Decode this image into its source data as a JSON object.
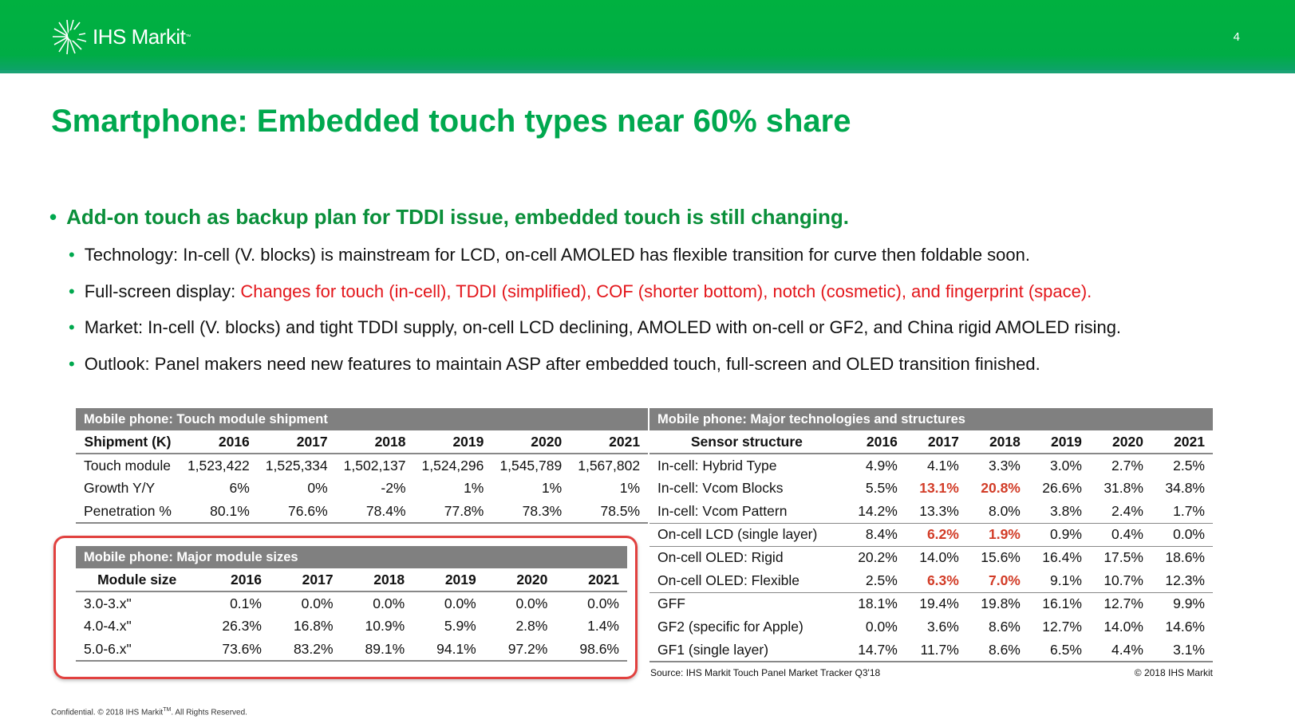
{
  "header": {
    "brand": "IHS Markit",
    "page_number": "4"
  },
  "title": "Smartphone: Embedded touch types near 60% share",
  "main_bullet": "Add-on touch as backup plan for TDDI issue, embedded touch is still changing.",
  "sub_bullets": [
    {
      "lead": "Technology: In-cell (V. blocks) is mainstream for LCD, on-cell AMOLED has flexible transition for curve then foldable soon.",
      "highlight": ""
    },
    {
      "lead": "Full-screen display: ",
      "highlight": "Changes for touch (in-cell), TDDI (simplified), COF (shorter bottom), notch (cosmetic), and fingerprint (space)."
    },
    {
      "lead": "Market: In-cell (V. blocks) and tight TDDI supply, on-cell LCD declining, AMOLED with on-cell or GF2, and China rigid AMOLED rising.",
      "highlight": ""
    },
    {
      "lead": "Outlook: Panel makers need new features to maintain ASP after embedded touch, full-screen and OLED transition finished.",
      "highlight": ""
    }
  ],
  "tables": {
    "shipment": {
      "caption": "Mobile phone: Touch module shipment",
      "headers": [
        "Shipment (K)",
        "2016",
        "2017",
        "2018",
        "2019",
        "2020",
        "2021"
      ],
      "rows": [
        [
          "Touch module",
          "1,523,422",
          "1,525,334",
          "1,502,137",
          "1,524,296",
          "1,545,789",
          "1,567,802"
        ],
        [
          "Growth Y/Y",
          "6%",
          "0%",
          "-2%",
          "1%",
          "1%",
          "1%"
        ],
        [
          "Penetration %",
          "80.1%",
          "76.6%",
          "78.4%",
          "77.8%",
          "78.3%",
          "78.5%"
        ]
      ]
    },
    "sizes": {
      "caption": "Mobile phone: Major module sizes",
      "headers": [
        "Module size",
        "2016",
        "2017",
        "2018",
        "2019",
        "2020",
        "2021"
      ],
      "rows": [
        [
          "3.0-3.x\"",
          "0.1%",
          "0.0%",
          "0.0%",
          "0.0%",
          "0.0%",
          "0.0%"
        ],
        [
          "4.0-4.x\"",
          "26.3%",
          "16.8%",
          "10.9%",
          "5.9%",
          "2.8%",
          "1.4%"
        ],
        [
          "5.0-6.x\"",
          "73.6%",
          "83.2%",
          "89.1%",
          "94.1%",
          "97.2%",
          "98.6%"
        ]
      ]
    },
    "tech": {
      "caption": "Mobile phone: Major technologies and structures",
      "headers": [
        "Sensor structure",
        "2016",
        "2017",
        "2018",
        "2019",
        "2020",
        "2021"
      ],
      "rows": [
        [
          "In-cell: Hybrid Type",
          "4.9%",
          "4.1%",
          "3.3%",
          "3.0%",
          "2.7%",
          "2.5%"
        ],
        [
          "In-cell: Vcom Blocks",
          "5.5%",
          "13.1%",
          "20.8%",
          "26.6%",
          "31.8%",
          "34.8%"
        ],
        [
          "In-cell: Vcom Pattern",
          "14.2%",
          "13.3%",
          "8.0%",
          "3.8%",
          "2.4%",
          "1.7%"
        ],
        [
          "On-cell LCD (single layer)",
          "8.4%",
          "6.2%",
          "1.9%",
          "0.9%",
          "0.4%",
          "0.0%"
        ],
        [
          "On-cell OLED: Rigid",
          "20.2%",
          "14.0%",
          "15.6%",
          "16.4%",
          "17.5%",
          "18.6%"
        ],
        [
          "On-cell OLED: Flexible",
          "2.5%",
          "6.3%",
          "7.0%",
          "9.1%",
          "10.7%",
          "12.3%"
        ],
        [
          "GFF",
          "18.1%",
          "19.4%",
          "19.8%",
          "16.1%",
          "12.7%",
          "9.9%"
        ],
        [
          "GF2 (specific for Apple)",
          "0.0%",
          "3.6%",
          "8.6%",
          "12.7%",
          "14.0%",
          "14.6%"
        ],
        [
          "GF1 (single layer)",
          "14.7%",
          "11.7%",
          "8.6%",
          "6.5%",
          "4.4%",
          "3.1%"
        ]
      ]
    }
  },
  "source": "Source: IHS Markit Touch Panel Market Tracker Q3'18",
  "copyright": "© 2018 IHS Markit",
  "footer": {
    "text": "Confidential. © 2018 IHS Markit",
    "tm": "TM",
    "rest": ". All Rights Reserved."
  },
  "colors": {
    "brand_green": "#00b140",
    "title_green": "#00a84e",
    "highlight_red": "#e3161b",
    "table_header_gray": "#808080"
  }
}
